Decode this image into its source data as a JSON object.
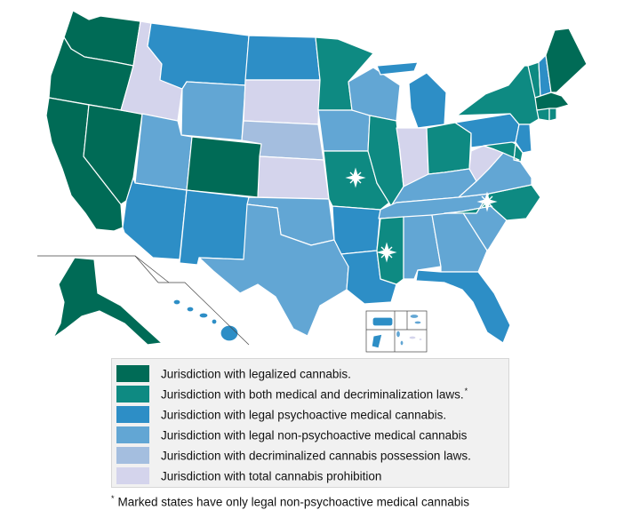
{
  "palette": {
    "legalized": "#006b56",
    "medical_decrim": "#0e8a82",
    "psychoactive_medical": "#2d8ec6",
    "non_psychoactive_medical": "#62a6d4",
    "decriminalized": "#a4bedf",
    "prohibition": "#d4d4ec"
  },
  "legend": {
    "items": [
      {
        "color_key": "legalized",
        "label": "Jurisdiction with legalized cannabis.",
        "asterisk": ""
      },
      {
        "color_key": "medical_decrim",
        "label": "Jurisdiction with both medical and decriminalization laws.",
        "asterisk": "*"
      },
      {
        "color_key": "psychoactive_medical",
        "label": "Jurisdiction with legal psychoactive medical cannabis.",
        "asterisk": ""
      },
      {
        "color_key": "non_psychoactive_medical",
        "label": "Jurisdiction with legal non-psychoactive medical cannabis",
        "asterisk": ""
      },
      {
        "color_key": "decriminalized",
        "label": "Jurisdiction with decriminalized cannabis possession laws.",
        "asterisk": ""
      },
      {
        "color_key": "prohibition",
        "label": "Jurisdiction with total cannabis prohibition",
        "asterisk": ""
      }
    ]
  },
  "footnote": {
    "mark": "*",
    "text": "Marked states have only legal non-psychoactive medical cannabis"
  },
  "map": {
    "states": {
      "WA": "legalized",
      "OR": "legalized",
      "CA": "legalized",
      "NV": "legalized",
      "CO": "legalized",
      "AK": "legalized",
      "ME": "legalized",
      "MA": "legalized",
      "VT": "medical_decrim",
      "NY": "medical_decrim",
      "CT": "medical_decrim",
      "RI": "medical_decrim",
      "MD": "medical_decrim",
      "DE": "medical_decrim",
      "MN": "medical_decrim",
      "IL": "medical_decrim",
      "OH": "medical_decrim",
      "MO": "medical_decrim",
      "MS": "medical_decrim",
      "NC": "medical_decrim",
      "NH": "psychoactive_medical",
      "MT": "psychoactive_medical",
      "ND": "psychoactive_medical",
      "AZ": "psychoactive_medical",
      "NM": "psychoactive_medical",
      "AR": "psychoactive_medical",
      "LA": "psychoactive_medical",
      "FL": "psychoactive_medical",
      "MI": "psychoactive_medical",
      "PA": "psychoactive_medical",
      "NJ": "psychoactive_medical",
      "HI": "psychoactive_medical",
      "WY": "non_psychoactive_medical",
      "UT": "non_psychoactive_medical",
      "TX": "non_psychoactive_medical",
      "OK": "non_psychoactive_medical",
      "IA": "non_psychoactive_medical",
      "WI": "non_psychoactive_medical",
      "KY": "non_psychoactive_medical",
      "TN": "non_psychoactive_medical",
      "AL": "non_psychoactive_medical",
      "GA": "non_psychoactive_medical",
      "SC": "non_psychoactive_medical",
      "VA": "non_psychoactive_medical",
      "NE": "decriminalized",
      "ID": "prohibition",
      "SD": "prohibition",
      "KS": "prohibition",
      "IN": "prohibition",
      "WV": "prohibition",
      "PR": "psychoactive_medical",
      "GU": "psychoactive_medical",
      "VI": "non_psychoactive_medical",
      "MP": "non_psychoactive_medical",
      "AS": "prohibition"
    },
    "marked_states": [
      "MO",
      "MS",
      "NC"
    ],
    "marker_icon": "star-marker-icon"
  }
}
